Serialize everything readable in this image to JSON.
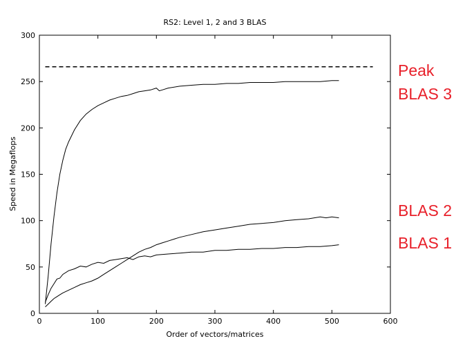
{
  "chart_data": {
    "type": "line",
    "title": "RS2: Level 1, 2 and 3 BLAS",
    "xlabel": "Order of vectors/matrices",
    "ylabel": "Speed in Megaflops",
    "xlim": [
      0,
      600
    ],
    "ylim": [
      0,
      300
    ],
    "xticks": [
      0,
      100,
      200,
      300,
      400,
      500,
      600
    ],
    "yticks": [
      0,
      50,
      100,
      150,
      200,
      250,
      300
    ],
    "grid": false,
    "series": [
      {
        "name": "Peak",
        "style": "dashed",
        "x": [
          10,
          570
        ],
        "y": [
          266,
          266
        ]
      },
      {
        "name": "BLAS 3",
        "x": [
          10,
          15,
          20,
          25,
          30,
          35,
          40,
          45,
          50,
          60,
          70,
          80,
          90,
          100,
          110,
          120,
          130,
          140,
          150,
          160,
          170,
          180,
          190,
          200,
          205,
          210,
          220,
          240,
          260,
          280,
          300,
          320,
          340,
          360,
          380,
          400,
          420,
          440,
          460,
          480,
          500,
          512
        ],
        "y": [
          10,
          40,
          75,
          105,
          130,
          150,
          165,
          177,
          185,
          198,
          208,
          215,
          220,
          224,
          227,
          230,
          232,
          234,
          235,
          237,
          239,
          240,
          241,
          243,
          240,
          241,
          243,
          245,
          246,
          247,
          247,
          248,
          248,
          249,
          249,
          249,
          250,
          250,
          250,
          250,
          251,
          251
        ]
      },
      {
        "name": "BLAS 2",
        "x": [
          10,
          15,
          20,
          25,
          30,
          35,
          40,
          50,
          60,
          70,
          80,
          90,
          100,
          110,
          120,
          130,
          140,
          150,
          160,
          170,
          180,
          190,
          200,
          210,
          220,
          240,
          260,
          280,
          300,
          320,
          340,
          360,
          380,
          400,
          420,
          440,
          460,
          480,
          490,
          500,
          512
        ],
        "y": [
          7,
          10,
          13,
          16,
          18,
          20,
          22,
          25,
          28,
          31,
          33,
          35,
          38,
          42,
          46,
          50,
          54,
          58,
          62,
          66,
          69,
          71,
          74,
          76,
          78,
          82,
          85,
          88,
          90,
          92,
          94,
          96,
          97,
          98,
          100,
          101,
          102,
          104,
          103,
          104,
          103
        ]
      },
      {
        "name": "BLAS 1",
        "x": [
          10,
          15,
          20,
          25,
          30,
          35,
          40,
          50,
          60,
          70,
          80,
          90,
          100,
          110,
          120,
          130,
          140,
          150,
          160,
          170,
          180,
          190,
          200,
          220,
          240,
          260,
          280,
          300,
          320,
          340,
          360,
          380,
          400,
          420,
          440,
          460,
          480,
          500,
          512
        ],
        "y": [
          12,
          20,
          27,
          32,
          37,
          38,
          42,
          46,
          48,
          51,
          50,
          53,
          55,
          54,
          57,
          58,
          59,
          60,
          58,
          61,
          62,
          61,
          63,
          64,
          65,
          66,
          66,
          68,
          68,
          69,
          69,
          70,
          70,
          71,
          71,
          72,
          72,
          73,
          74
        ]
      }
    ],
    "annotations": [
      {
        "text": "Peak",
        "series": "Peak",
        "color": "#e8202a"
      },
      {
        "text": "BLAS 3",
        "series": "BLAS 3",
        "color": "#e8202a"
      },
      {
        "text": "BLAS 2",
        "series": "BLAS 2",
        "color": "#e8202a"
      },
      {
        "text": "BLAS 1",
        "series": "BLAS 1",
        "color": "#e8202a"
      }
    ]
  }
}
